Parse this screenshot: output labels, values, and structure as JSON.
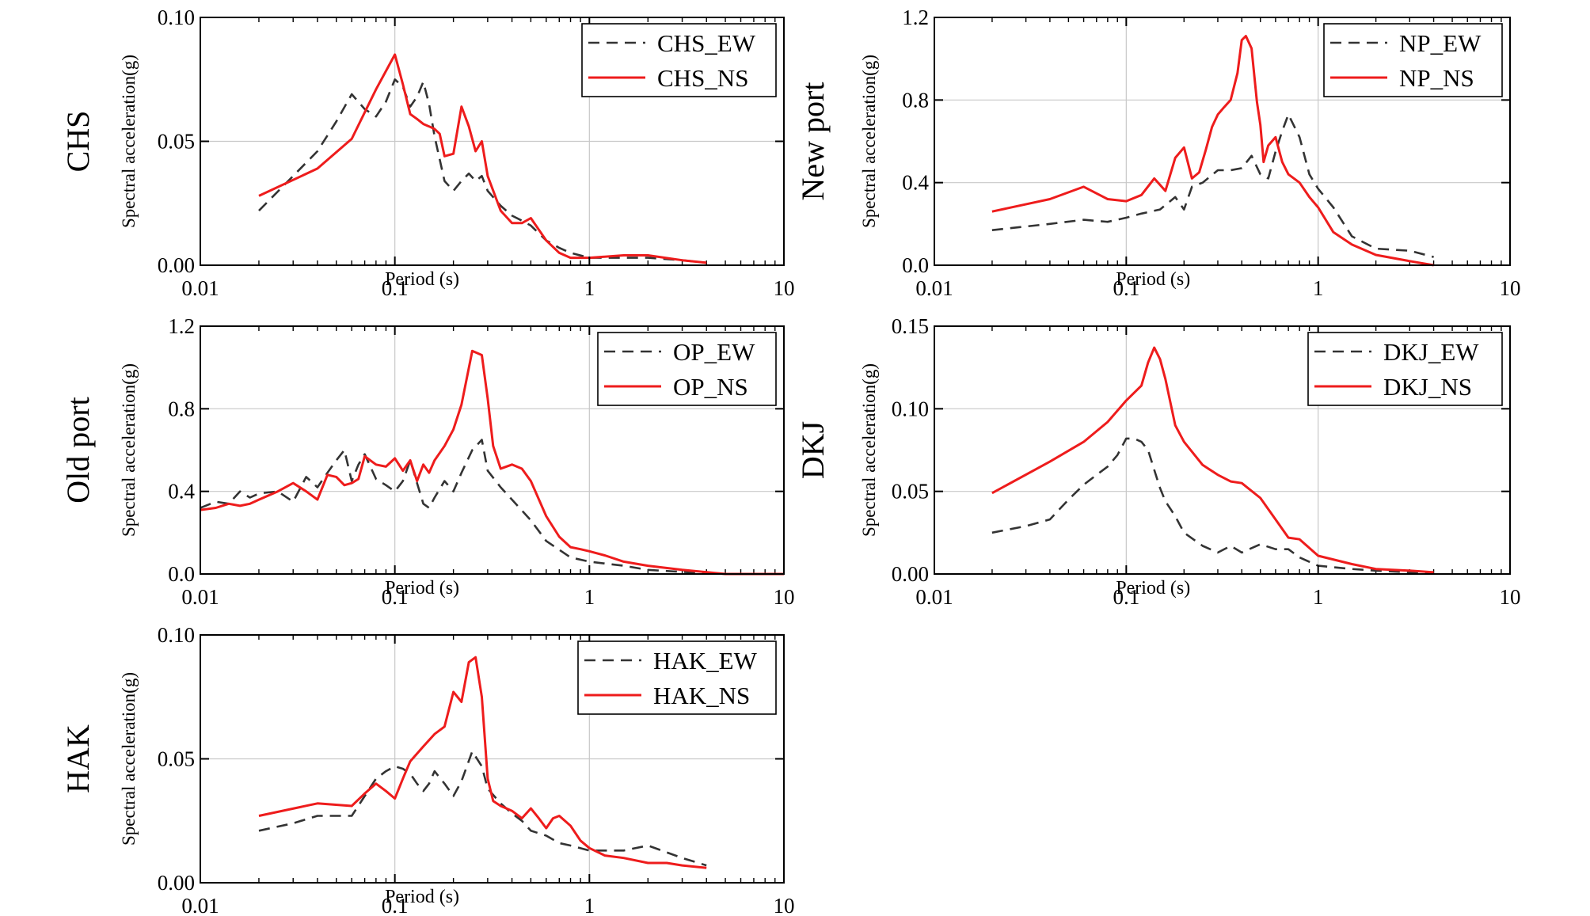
{
  "chart_data": [
    {
      "type": "line",
      "side_label": "CHS",
      "xlabel": "Period (s)",
      "ylabel": "Spectral acceleration(g)",
      "x_scale": "log",
      "xlim": [
        0.01,
        10
      ],
      "ylim": [
        0,
        0.1
      ],
      "xticks": [
        0.01,
        0.1,
        1,
        10
      ],
      "xtick_labels": [
        "0.01",
        "0.1",
        "1",
        "10"
      ],
      "yticks": [
        0,
        0.05,
        0.1
      ],
      "ytick_labels": [
        "0.00",
        "0.05",
        "0.10"
      ],
      "grid": true,
      "legend_position": "top-right",
      "series": [
        {
          "name": "CHS_EW",
          "color": "#333333",
          "style": "dashed",
          "x": [
            0.02,
            0.03,
            0.04,
            0.05,
            0.06,
            0.07,
            0.08,
            0.09,
            0.1,
            0.11,
            0.12,
            0.13,
            0.14,
            0.15,
            0.16,
            0.18,
            0.2,
            0.22,
            0.24,
            0.26,
            0.28,
            0.3,
            0.35,
            0.4,
            0.45,
            0.5,
            0.6,
            0.7,
            0.8,
            1.0,
            1.5,
            2.0,
            3.0,
            4.0
          ],
          "y": [
            0.022,
            0.036,
            0.046,
            0.058,
            0.069,
            0.063,
            0.06,
            0.066,
            0.075,
            0.072,
            0.064,
            0.068,
            0.074,
            0.065,
            0.052,
            0.034,
            0.03,
            0.034,
            0.037,
            0.034,
            0.036,
            0.03,
            0.024,
            0.02,
            0.018,
            0.016,
            0.01,
            0.007,
            0.005,
            0.003,
            0.003,
            0.003,
            0.002,
            0.001
          ]
        },
        {
          "name": "CHS_NS",
          "color": "#ee1c1c",
          "style": "solid",
          "x": [
            0.02,
            0.04,
            0.06,
            0.08,
            0.1,
            0.11,
            0.12,
            0.13,
            0.14,
            0.15,
            0.16,
            0.17,
            0.18,
            0.2,
            0.22,
            0.24,
            0.26,
            0.28,
            0.3,
            0.35,
            0.4,
            0.45,
            0.5,
            0.6,
            0.7,
            0.8,
            1.0,
            1.5,
            2.0,
            3.0,
            4.0
          ],
          "y": [
            0.028,
            0.039,
            0.051,
            0.071,
            0.085,
            0.073,
            0.061,
            0.059,
            0.057,
            0.056,
            0.055,
            0.053,
            0.044,
            0.045,
            0.064,
            0.056,
            0.046,
            0.05,
            0.036,
            0.022,
            0.017,
            0.017,
            0.019,
            0.01,
            0.005,
            0.003,
            0.003,
            0.004,
            0.004,
            0.002,
            0.001
          ]
        }
      ]
    },
    {
      "type": "line",
      "side_label": "New port",
      "xlabel": "Period (s)",
      "ylabel": "Spectral acceleration(g)",
      "x_scale": "log",
      "xlim": [
        0.01,
        10
      ],
      "ylim": [
        0,
        1.2
      ],
      "xticks": [
        0.01,
        0.1,
        1,
        10
      ],
      "xtick_labels": [
        "0.01",
        "0.1",
        "1",
        "10"
      ],
      "yticks": [
        0,
        0.4,
        0.8,
        1.2
      ],
      "ytick_labels": [
        "0.0",
        "0.4",
        "0.8",
        "1.2"
      ],
      "grid": true,
      "legend_position": "top-right",
      "series": [
        {
          "name": "NP_EW",
          "color": "#333333",
          "style": "dashed",
          "x": [
            0.02,
            0.04,
            0.06,
            0.08,
            0.1,
            0.12,
            0.15,
            0.18,
            0.2,
            0.22,
            0.25,
            0.3,
            0.35,
            0.4,
            0.45,
            0.5,
            0.55,
            0.6,
            0.65,
            0.7,
            0.8,
            0.9,
            1.0,
            1.2,
            1.5,
            2.0,
            3.0,
            4.0
          ],
          "y": [
            0.17,
            0.2,
            0.22,
            0.21,
            0.23,
            0.25,
            0.27,
            0.33,
            0.27,
            0.38,
            0.4,
            0.46,
            0.46,
            0.47,
            0.53,
            0.44,
            0.42,
            0.55,
            0.65,
            0.73,
            0.62,
            0.44,
            0.37,
            0.28,
            0.14,
            0.08,
            0.07,
            0.04
          ]
        },
        {
          "name": "NP_NS",
          "color": "#ee1c1c",
          "style": "solid",
          "x": [
            0.02,
            0.04,
            0.06,
            0.08,
            0.1,
            0.12,
            0.14,
            0.16,
            0.18,
            0.2,
            0.22,
            0.24,
            0.26,
            0.28,
            0.3,
            0.32,
            0.35,
            0.38,
            0.4,
            0.42,
            0.45,
            0.48,
            0.5,
            0.52,
            0.55,
            0.6,
            0.65,
            0.7,
            0.8,
            0.9,
            1.0,
            1.2,
            1.5,
            2.0,
            3.0,
            4.0
          ],
          "y": [
            0.26,
            0.32,
            0.38,
            0.32,
            0.31,
            0.34,
            0.42,
            0.36,
            0.52,
            0.57,
            0.42,
            0.45,
            0.56,
            0.67,
            0.73,
            0.76,
            0.8,
            0.93,
            1.09,
            1.11,
            1.05,
            0.79,
            0.68,
            0.5,
            0.58,
            0.62,
            0.5,
            0.44,
            0.4,
            0.33,
            0.28,
            0.16,
            0.1,
            0.05,
            0.02,
            0.0
          ]
        }
      ]
    },
    {
      "type": "line",
      "side_label": "Old port",
      "xlabel": "Period (s)",
      "ylabel": "Spectral acceleration(g)",
      "x_scale": "log",
      "xlim": [
        0.01,
        10
      ],
      "ylim": [
        0,
        1.2
      ],
      "xticks": [
        0.01,
        0.1,
        1,
        10
      ],
      "xtick_labels": [
        "0.01",
        "0.1",
        "1",
        "10"
      ],
      "yticks": [
        0,
        0.4,
        0.8,
        1.2
      ],
      "ytick_labels": [
        "0.0",
        "0.4",
        "0.8",
        "1.2"
      ],
      "grid": true,
      "legend_position": "top-right",
      "series": [
        {
          "name": "OP_EW",
          "color": "#333333",
          "style": "dashed",
          "x": [
            0.01,
            0.012,
            0.014,
            0.016,
            0.018,
            0.02,
            0.025,
            0.03,
            0.035,
            0.04,
            0.045,
            0.05,
            0.055,
            0.06,
            0.065,
            0.07,
            0.08,
            0.09,
            0.1,
            0.11,
            0.12,
            0.13,
            0.14,
            0.15,
            0.16,
            0.18,
            0.2,
            0.22,
            0.25,
            0.28,
            0.3,
            0.35,
            0.4,
            0.5,
            0.6,
            0.8,
            1.0,
            1.5,
            2.0,
            3.0,
            5.0,
            10.0
          ],
          "y": [
            0.32,
            0.35,
            0.34,
            0.4,
            0.37,
            0.39,
            0.4,
            0.35,
            0.47,
            0.42,
            0.49,
            0.55,
            0.6,
            0.45,
            0.53,
            0.58,
            0.46,
            0.43,
            0.4,
            0.45,
            0.55,
            0.44,
            0.34,
            0.32,
            0.37,
            0.45,
            0.4,
            0.49,
            0.6,
            0.65,
            0.5,
            0.42,
            0.36,
            0.26,
            0.16,
            0.08,
            0.06,
            0.04,
            0.02,
            0.01,
            0.0,
            0.0
          ]
        },
        {
          "name": "OP_NS",
          "color": "#ee1c1c",
          "style": "solid",
          "x": [
            0.01,
            0.012,
            0.014,
            0.016,
            0.018,
            0.02,
            0.025,
            0.03,
            0.035,
            0.04,
            0.045,
            0.05,
            0.055,
            0.06,
            0.065,
            0.07,
            0.08,
            0.09,
            0.1,
            0.11,
            0.12,
            0.13,
            0.14,
            0.15,
            0.16,
            0.18,
            0.2,
            0.22,
            0.25,
            0.28,
            0.3,
            0.32,
            0.35,
            0.4,
            0.45,
            0.5,
            0.6,
            0.7,
            0.8,
            0.9,
            1.0,
            1.2,
            1.5,
            2.0,
            3.0,
            5.0,
            10.0
          ],
          "y": [
            0.31,
            0.32,
            0.34,
            0.33,
            0.34,
            0.36,
            0.4,
            0.44,
            0.4,
            0.36,
            0.48,
            0.47,
            0.43,
            0.44,
            0.46,
            0.57,
            0.53,
            0.52,
            0.56,
            0.5,
            0.55,
            0.45,
            0.53,
            0.49,
            0.55,
            0.62,
            0.7,
            0.82,
            1.08,
            1.06,
            0.85,
            0.62,
            0.51,
            0.53,
            0.51,
            0.45,
            0.28,
            0.18,
            0.13,
            0.12,
            0.11,
            0.09,
            0.06,
            0.04,
            0.02,
            0.0,
            0.0
          ]
        }
      ]
    },
    {
      "type": "line",
      "side_label": "DKJ",
      "xlabel": "Period (s)",
      "ylabel": "Spectral acceleration(g)",
      "x_scale": "log",
      "xlim": [
        0.01,
        10
      ],
      "ylim": [
        0,
        0.15
      ],
      "xticks": [
        0.01,
        0.1,
        1,
        10
      ],
      "xtick_labels": [
        "0.01",
        "0.1",
        "1",
        "10"
      ],
      "yticks": [
        0,
        0.05,
        0.1,
        0.15
      ],
      "ytick_labels": [
        "0.00",
        "0.05",
        "0.10",
        "0.15"
      ],
      "grid": true,
      "legend_position": "top-right",
      "series": [
        {
          "name": "DKJ_EW",
          "color": "#333333",
          "style": "dashed",
          "x": [
            0.02,
            0.03,
            0.04,
            0.05,
            0.06,
            0.07,
            0.08,
            0.09,
            0.1,
            0.11,
            0.12,
            0.13,
            0.14,
            0.15,
            0.16,
            0.18,
            0.2,
            0.25,
            0.3,
            0.35,
            0.4,
            0.5,
            0.6,
            0.7,
            0.8,
            1.0,
            1.5,
            2.0,
            3.0,
            4.0
          ],
          "y": [
            0.025,
            0.029,
            0.033,
            0.045,
            0.054,
            0.06,
            0.065,
            0.072,
            0.082,
            0.082,
            0.08,
            0.075,
            0.063,
            0.052,
            0.044,
            0.035,
            0.025,
            0.017,
            0.013,
            0.017,
            0.013,
            0.018,
            0.015,
            0.015,
            0.01,
            0.005,
            0.003,
            0.002,
            0.001,
            0.001
          ]
        },
        {
          "name": "DKJ_NS",
          "color": "#ee1c1c",
          "style": "solid",
          "x": [
            0.02,
            0.04,
            0.06,
            0.08,
            0.1,
            0.12,
            0.13,
            0.14,
            0.15,
            0.16,
            0.18,
            0.2,
            0.25,
            0.3,
            0.35,
            0.4,
            0.5,
            0.6,
            0.7,
            0.8,
            1.0,
            1.5,
            2.0,
            3.0,
            4.0
          ],
          "y": [
            0.049,
            0.068,
            0.08,
            0.092,
            0.105,
            0.114,
            0.128,
            0.137,
            0.13,
            0.118,
            0.09,
            0.08,
            0.066,
            0.06,
            0.056,
            0.055,
            0.046,
            0.033,
            0.022,
            0.021,
            0.011,
            0.006,
            0.003,
            0.002,
            0.001
          ]
        }
      ]
    },
    {
      "type": "line",
      "side_label": "HAK",
      "xlabel": "Period (s)",
      "ylabel": "Spectral acceleration(g)",
      "x_scale": "log",
      "xlim": [
        0.01,
        10
      ],
      "ylim": [
        0,
        0.1
      ],
      "xticks": [
        0.01,
        0.1,
        1,
        10
      ],
      "xtick_labels": [
        "0.01",
        "0.1",
        "1",
        "10"
      ],
      "yticks": [
        0,
        0.05,
        0.1
      ],
      "ytick_labels": [
        "0.00",
        "0.05",
        "0.10"
      ],
      "grid": true,
      "legend_position": "top-right",
      "series": [
        {
          "name": "HAK_EW",
          "color": "#333333",
          "style": "dashed",
          "x": [
            0.02,
            0.03,
            0.04,
            0.05,
            0.06,
            0.07,
            0.08,
            0.09,
            0.1,
            0.11,
            0.12,
            0.13,
            0.14,
            0.15,
            0.16,
            0.18,
            0.2,
            0.22,
            0.25,
            0.28,
            0.3,
            0.35,
            0.4,
            0.45,
            0.5,
            0.6,
            0.7,
            0.8,
            1.0,
            1.5,
            2.0,
            3.0,
            4.0
          ],
          "y": [
            0.021,
            0.024,
            0.027,
            0.027,
            0.027,
            0.035,
            0.042,
            0.045,
            0.047,
            0.046,
            0.044,
            0.04,
            0.037,
            0.04,
            0.045,
            0.04,
            0.035,
            0.041,
            0.053,
            0.047,
            0.038,
            0.032,
            0.028,
            0.025,
            0.021,
            0.019,
            0.016,
            0.015,
            0.013,
            0.013,
            0.015,
            0.01,
            0.007
          ]
        },
        {
          "name": "HAK_NS",
          "color": "#ee1c1c",
          "style": "solid",
          "x": [
            0.02,
            0.04,
            0.06,
            0.07,
            0.08,
            0.09,
            0.1,
            0.11,
            0.12,
            0.14,
            0.16,
            0.18,
            0.2,
            0.22,
            0.24,
            0.26,
            0.28,
            0.3,
            0.32,
            0.35,
            0.4,
            0.45,
            0.5,
            0.55,
            0.6,
            0.65,
            0.7,
            0.8,
            0.9,
            1.0,
            1.2,
            1.5,
            2.0,
            2.5,
            3.0,
            4.0
          ],
          "y": [
            0.027,
            0.032,
            0.031,
            0.036,
            0.04,
            0.037,
            0.034,
            0.042,
            0.049,
            0.055,
            0.06,
            0.063,
            0.077,
            0.073,
            0.089,
            0.091,
            0.075,
            0.042,
            0.033,
            0.031,
            0.029,
            0.026,
            0.03,
            0.026,
            0.022,
            0.026,
            0.027,
            0.023,
            0.017,
            0.014,
            0.011,
            0.01,
            0.008,
            0.008,
            0.007,
            0.006
          ]
        }
      ]
    }
  ]
}
